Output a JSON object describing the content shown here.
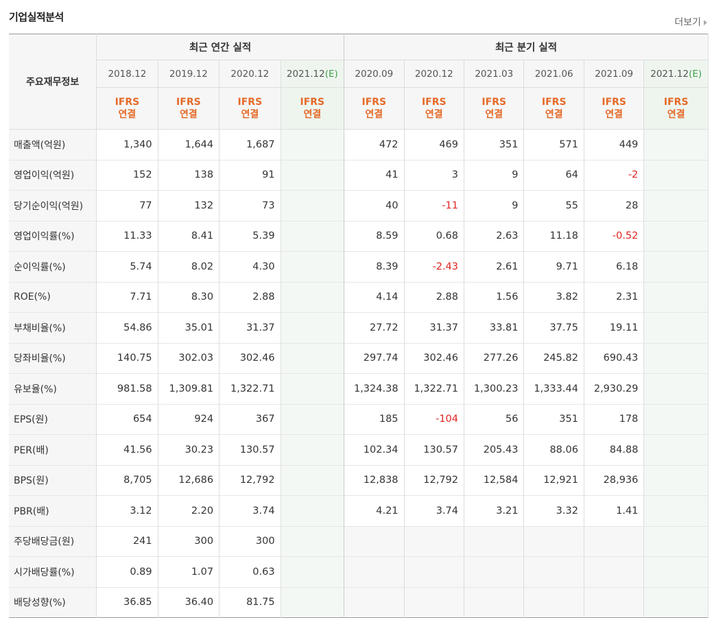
{
  "title": "기업실적분석",
  "more_label": "더보기",
  "header": {
    "row_label": "주요재무정보",
    "annual_group": "최근 연간 실적",
    "quarter_group": "최근 분기 실적",
    "annual_periods": [
      "2018.12",
      "2019.12",
      "2020.12",
      "2021.12(E)"
    ],
    "quarter_periods": [
      "2020.09",
      "2020.12",
      "2021.03",
      "2021.06",
      "2021.09",
      "2021.12(E)"
    ],
    "ifrs_top": "IFRS",
    "ifrs_bottom": "연결"
  },
  "rows": [
    {
      "label": "매출액(억원)",
      "annual": [
        "1,340",
        "1,644",
        "1,687",
        ""
      ],
      "quarter": [
        "472",
        "469",
        "351",
        "571",
        "449",
        ""
      ]
    },
    {
      "label": "영업이익(억원)",
      "annual": [
        "152",
        "138",
        "91",
        ""
      ],
      "quarter": [
        "41",
        "3",
        "9",
        "64",
        "-2",
        ""
      ]
    },
    {
      "label": "당기순이익(억원)",
      "annual": [
        "77",
        "132",
        "73",
        ""
      ],
      "quarter": [
        "40",
        "-11",
        "9",
        "55",
        "28",
        ""
      ]
    },
    {
      "label": "영업이익률(%)",
      "annual": [
        "11.33",
        "8.41",
        "5.39",
        ""
      ],
      "quarter": [
        "8.59",
        "0.68",
        "2.63",
        "11.18",
        "-0.52",
        ""
      ]
    },
    {
      "label": "순이익률(%)",
      "annual": [
        "5.74",
        "8.02",
        "4.30",
        ""
      ],
      "quarter": [
        "8.39",
        "-2.43",
        "2.61",
        "9.71",
        "6.18",
        ""
      ]
    },
    {
      "label": "ROE(%)",
      "annual": [
        "7.71",
        "8.30",
        "2.88",
        ""
      ],
      "quarter": [
        "4.14",
        "2.88",
        "1.56",
        "3.82",
        "2.31",
        ""
      ]
    },
    {
      "label": "부채비율(%)",
      "annual": [
        "54.86",
        "35.01",
        "31.37",
        ""
      ],
      "quarter": [
        "27.72",
        "31.37",
        "33.81",
        "37.75",
        "19.11",
        ""
      ]
    },
    {
      "label": "당좌비율(%)",
      "annual": [
        "140.75",
        "302.03",
        "302.46",
        ""
      ],
      "quarter": [
        "297.74",
        "302.46",
        "277.26",
        "245.82",
        "690.43",
        ""
      ]
    },
    {
      "label": "유보율(%)",
      "annual": [
        "981.58",
        "1,309.81",
        "1,322.71",
        ""
      ],
      "quarter": [
        "1,324.38",
        "1,322.71",
        "1,300.23",
        "1,333.44",
        "2,930.29",
        ""
      ]
    },
    {
      "label": "EPS(원)",
      "annual": [
        "654",
        "924",
        "367",
        ""
      ],
      "quarter": [
        "185",
        "-104",
        "56",
        "351",
        "178",
        ""
      ]
    },
    {
      "label": "PER(배)",
      "annual": [
        "41.56",
        "30.23",
        "130.57",
        ""
      ],
      "quarter": [
        "102.34",
        "130.57",
        "205.43",
        "88.06",
        "84.88",
        ""
      ]
    },
    {
      "label": "BPS(원)",
      "annual": [
        "8,705",
        "12,686",
        "12,792",
        ""
      ],
      "quarter": [
        "12,838",
        "12,792",
        "12,584",
        "12,921",
        "28,936",
        ""
      ]
    },
    {
      "label": "PBR(배)",
      "annual": [
        "3.12",
        "2.20",
        "3.74",
        ""
      ],
      "quarter": [
        "4.21",
        "3.74",
        "3.21",
        "3.32",
        "1.41",
        ""
      ]
    },
    {
      "label": "주당배당금(원)",
      "annual": [
        "241",
        "300",
        "300",
        ""
      ],
      "quarter": [
        "",
        "",
        "",
        "",
        "",
        ""
      ]
    },
    {
      "label": "시가배당률(%)",
      "annual": [
        "0.89",
        "1.07",
        "0.63",
        ""
      ],
      "quarter": [
        "",
        "",
        "",
        "",
        "",
        ""
      ]
    },
    {
      "label": "배당성향(%)",
      "annual": [
        "36.85",
        "36.40",
        "81.75",
        ""
      ],
      "quarter": [
        "",
        "",
        "",
        "",
        "",
        ""
      ]
    }
  ],
  "colors": {
    "negative": "#e0241f",
    "ifrs": "#e56a28",
    "estimate_bg": "#f3f8f4",
    "estimate_mark": "#3fa04b"
  }
}
